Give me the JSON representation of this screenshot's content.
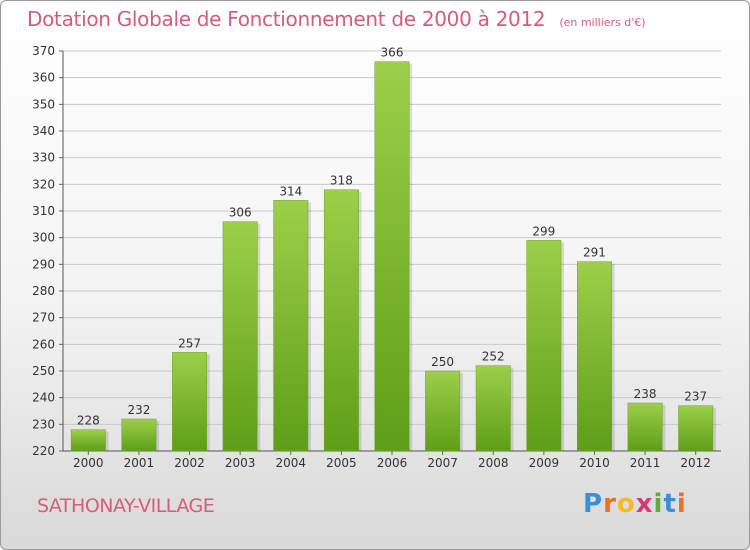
{
  "header": {
    "title": "Dotation Globale de Fonctionnement de 2000 à 2012",
    "subtitle": "(en milliers d'€)"
  },
  "footer": {
    "commune": "SATHONAY-VILLAGE",
    "logo": [
      "P",
      "r",
      "o",
      "x",
      "i",
      "t",
      "i"
    ]
  },
  "colors": {
    "bar_top": "#9ccf4a",
    "bar_bottom": "#5e9e18",
    "title": "#d85a7c"
  },
  "chart_data": {
    "type": "bar",
    "title": "Dotation Globale de Fonctionnement de 2000 à 2012",
    "subtitle": "(en milliers d'€)",
    "categories": [
      "2000",
      "2001",
      "2002",
      "2003",
      "2004",
      "2005",
      "2006",
      "2007",
      "2008",
      "2009",
      "2010",
      "2011",
      "2012"
    ],
    "values": [
      228,
      232,
      257,
      306,
      314,
      318,
      366,
      250,
      252,
      299,
      291,
      238,
      237
    ],
    "ylim": [
      220,
      370
    ],
    "yticks": [
      220,
      230,
      240,
      250,
      260,
      270,
      280,
      290,
      300,
      310,
      320,
      330,
      340,
      350,
      360,
      370
    ],
    "grid": true,
    "legend": "none"
  }
}
